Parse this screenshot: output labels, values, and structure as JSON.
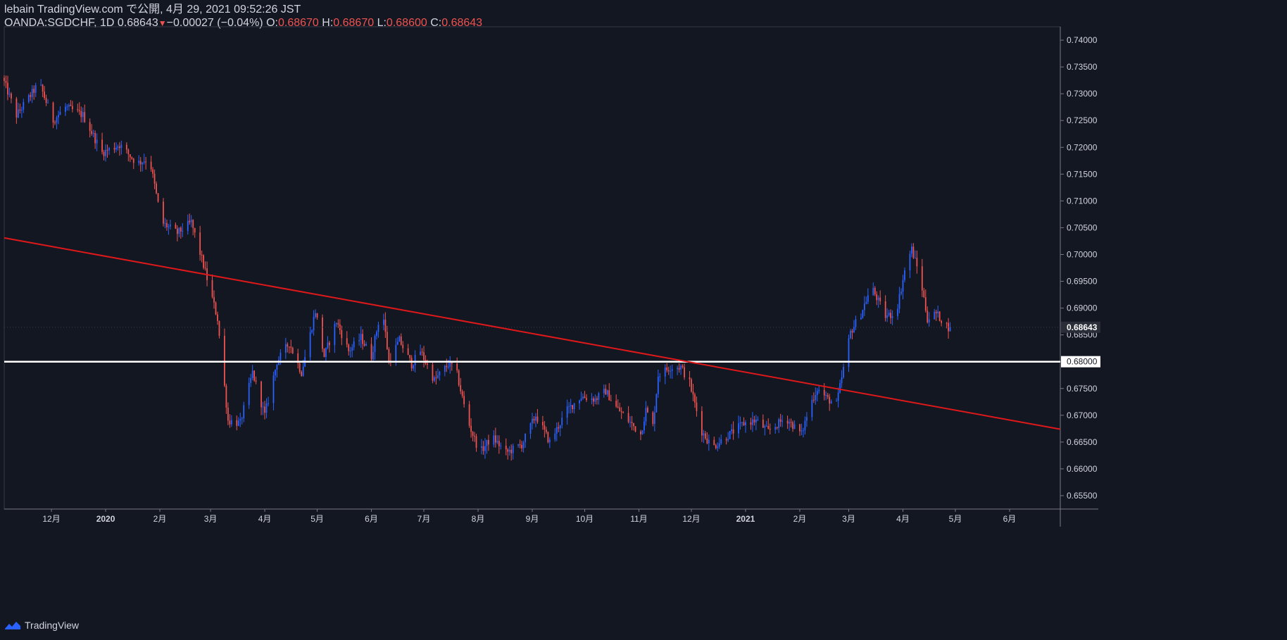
{
  "header": {
    "line1": "lebain TradingView.com で公開, 4月 29, 2021 09:52:26 JST",
    "symbol": "OANDA:SGDCHF, 1D 0.68643",
    "arrow": "▼",
    "change": "−0.00027 (−0.04%)",
    "o_label": " O:",
    "o_value": "0.68670",
    "h_label": " H:",
    "h_value": "0.68670",
    "l_label": " L:",
    "l_value": "0.68600",
    "c_label": " C:",
    "c_value": "0.68643"
  },
  "colors": {
    "background": "#131722",
    "up": "#2962ff",
    "down": "#ef5350",
    "trendline": "#e0181a",
    "support": "#ffffff",
    "text": "#d1d4dc"
  },
  "footer": {
    "logo_text": "TradingView"
  },
  "chart_data": {
    "type": "candlestick",
    "symbol": "OANDA:SGDCHF",
    "timeframe": "1D",
    "ylim": [
      0.6525,
      0.7425
    ],
    "y_ticks": [
      "0.74000",
      "0.73500",
      "0.73000",
      "0.72500",
      "0.72000",
      "0.71500",
      "0.71000",
      "0.70500",
      "0.70000",
      "0.69500",
      "0.69000",
      "0.68500",
      "0.68000",
      "0.67500",
      "0.67000",
      "0.66500",
      "0.66000",
      "0.65500"
    ],
    "x_ticks": [
      {
        "date": "2019-12-01",
        "label": "12月",
        "bold": false
      },
      {
        "date": "2020-01-01",
        "label": "2020",
        "bold": true
      },
      {
        "date": "2020-02-01",
        "label": "2月",
        "bold": false
      },
      {
        "date": "2020-03-01",
        "label": "3月",
        "bold": false
      },
      {
        "date": "2020-04-01",
        "label": "4月",
        "bold": false
      },
      {
        "date": "2020-05-01",
        "label": "5月",
        "bold": false
      },
      {
        "date": "2020-06-01",
        "label": "6月",
        "bold": false
      },
      {
        "date": "2020-07-01",
        "label": "7月",
        "bold": false
      },
      {
        "date": "2020-08-01",
        "label": "8月",
        "bold": false
      },
      {
        "date": "2020-09-01",
        "label": "9月",
        "bold": false
      },
      {
        "date": "2020-10-01",
        "label": "10月",
        "bold": false
      },
      {
        "date": "2020-11-01",
        "label": "11月",
        "bold": false
      },
      {
        "date": "2020-12-01",
        "label": "12月",
        "bold": false
      },
      {
        "date": "2021-01-01",
        "label": "2021",
        "bold": true
      },
      {
        "date": "2021-02-01",
        "label": "2月",
        "bold": false
      },
      {
        "date": "2021-03-01",
        "label": "3月",
        "bold": false
      },
      {
        "date": "2021-04-01",
        "label": "4月",
        "bold": false
      },
      {
        "date": "2021-05-01",
        "label": "5月",
        "bold": false
      },
      {
        "date": "2021-06-01",
        "label": "6月",
        "bold": false
      }
    ],
    "x_range": [
      "2019-11-04",
      "2021-06-30"
    ],
    "last_price": "0.68643",
    "support_line": {
      "value": 0.68,
      "label": "0.68000"
    },
    "trendline": {
      "start": {
        "date": "2019-11-04",
        "value": 0.7031
      },
      "end": {
        "date": "2021-06-30",
        "value": 0.6674
      }
    },
    "anchors": [
      [
        "2019-11-04",
        0.733
      ],
      [
        "2019-11-12",
        0.726
      ],
      [
        "2019-11-25",
        0.732
      ],
      [
        "2019-12-03",
        0.725
      ],
      [
        "2019-12-10",
        0.7275
      ],
      [
        "2019-12-20",
        0.726
      ],
      [
        "2019-12-31",
        0.719
      ],
      [
        "2020-01-10",
        0.7205
      ],
      [
        "2020-01-20",
        0.717
      ],
      [
        "2020-01-27",
        0.718
      ],
      [
        "2020-02-03",
        0.706
      ],
      [
        "2020-02-12",
        0.704
      ],
      [
        "2020-02-20",
        0.706
      ],
      [
        "2020-02-27",
        0.698
      ],
      [
        "2020-03-06",
        0.688
      ],
      [
        "2020-03-12",
        0.669
      ],
      [
        "2020-03-19",
        0.6685
      ],
      [
        "2020-03-26",
        0.678
      ],
      [
        "2020-04-02",
        0.67
      ],
      [
        "2020-04-09",
        0.68
      ],
      [
        "2020-04-16",
        0.6835
      ],
      [
        "2020-04-23",
        0.678
      ],
      [
        "2020-05-01",
        0.6895
      ],
      [
        "2020-05-06",
        0.681
      ],
      [
        "2020-05-13",
        0.6875
      ],
      [
        "2020-05-20",
        0.682
      ],
      [
        "2020-05-27",
        0.6845
      ],
      [
        "2020-06-02",
        0.681
      ],
      [
        "2020-06-08",
        0.6905
      ],
      [
        "2020-06-12",
        0.68
      ],
      [
        "2020-06-18",
        0.684
      ],
      [
        "2020-06-25",
        0.6795
      ],
      [
        "2020-06-30",
        0.682
      ],
      [
        "2020-07-08",
        0.6765
      ],
      [
        "2020-07-16",
        0.6795
      ],
      [
        "2020-07-20",
        0.679
      ],
      [
        "2020-07-27",
        0.669
      ],
      [
        "2020-08-03",
        0.663
      ],
      [
        "2020-08-10",
        0.666
      ],
      [
        "2020-08-18",
        0.663
      ],
      [
        "2020-08-27",
        0.6645
      ],
      [
        "2020-09-04",
        0.67
      ],
      [
        "2020-09-12",
        0.665
      ],
      [
        "2020-09-22",
        0.671
      ],
      [
        "2020-09-30",
        0.6735
      ],
      [
        "2020-10-08",
        0.673
      ],
      [
        "2020-10-14",
        0.6745
      ],
      [
        "2020-10-20",
        0.6715
      ],
      [
        "2020-10-27",
        0.669
      ],
      [
        "2020-11-03",
        0.6665
      ],
      [
        "2020-11-06",
        0.671
      ],
      [
        "2020-11-10",
        0.668
      ],
      [
        "2020-11-13",
        0.6775
      ],
      [
        "2020-11-20",
        0.679
      ],
      [
        "2020-11-26",
        0.679
      ],
      [
        "2020-12-01",
        0.676
      ],
      [
        "2020-12-08",
        0.667
      ],
      [
        "2020-12-14",
        0.664
      ],
      [
        "2020-12-22",
        0.666
      ],
      [
        "2021-01-01",
        0.6685
      ],
      [
        "2021-01-08",
        0.669
      ],
      [
        "2021-01-15",
        0.667
      ],
      [
        "2021-01-25",
        0.6695
      ],
      [
        "2021-02-03",
        0.6665
      ],
      [
        "2021-02-08",
        0.672
      ],
      [
        "2021-02-12",
        0.675
      ],
      [
        "2021-02-18",
        0.673
      ],
      [
        "2021-02-23",
        0.672
      ],
      [
        "2021-02-26",
        0.677
      ],
      [
        "2021-03-03",
        0.6855
      ],
      [
        "2021-03-09",
        0.689
      ],
      [
        "2021-03-15",
        0.694
      ],
      [
        "2021-03-23",
        0.6885
      ],
      [
        "2021-03-29",
        0.689
      ],
      [
        "2021-04-04",
        0.6985
      ],
      [
        "2021-04-07",
        0.701
      ],
      [
        "2021-04-12",
        0.6955
      ],
      [
        "2021-04-16",
        0.688
      ],
      [
        "2021-04-21",
        0.689
      ],
      [
        "2021-04-28",
        0.68643
      ]
    ]
  }
}
